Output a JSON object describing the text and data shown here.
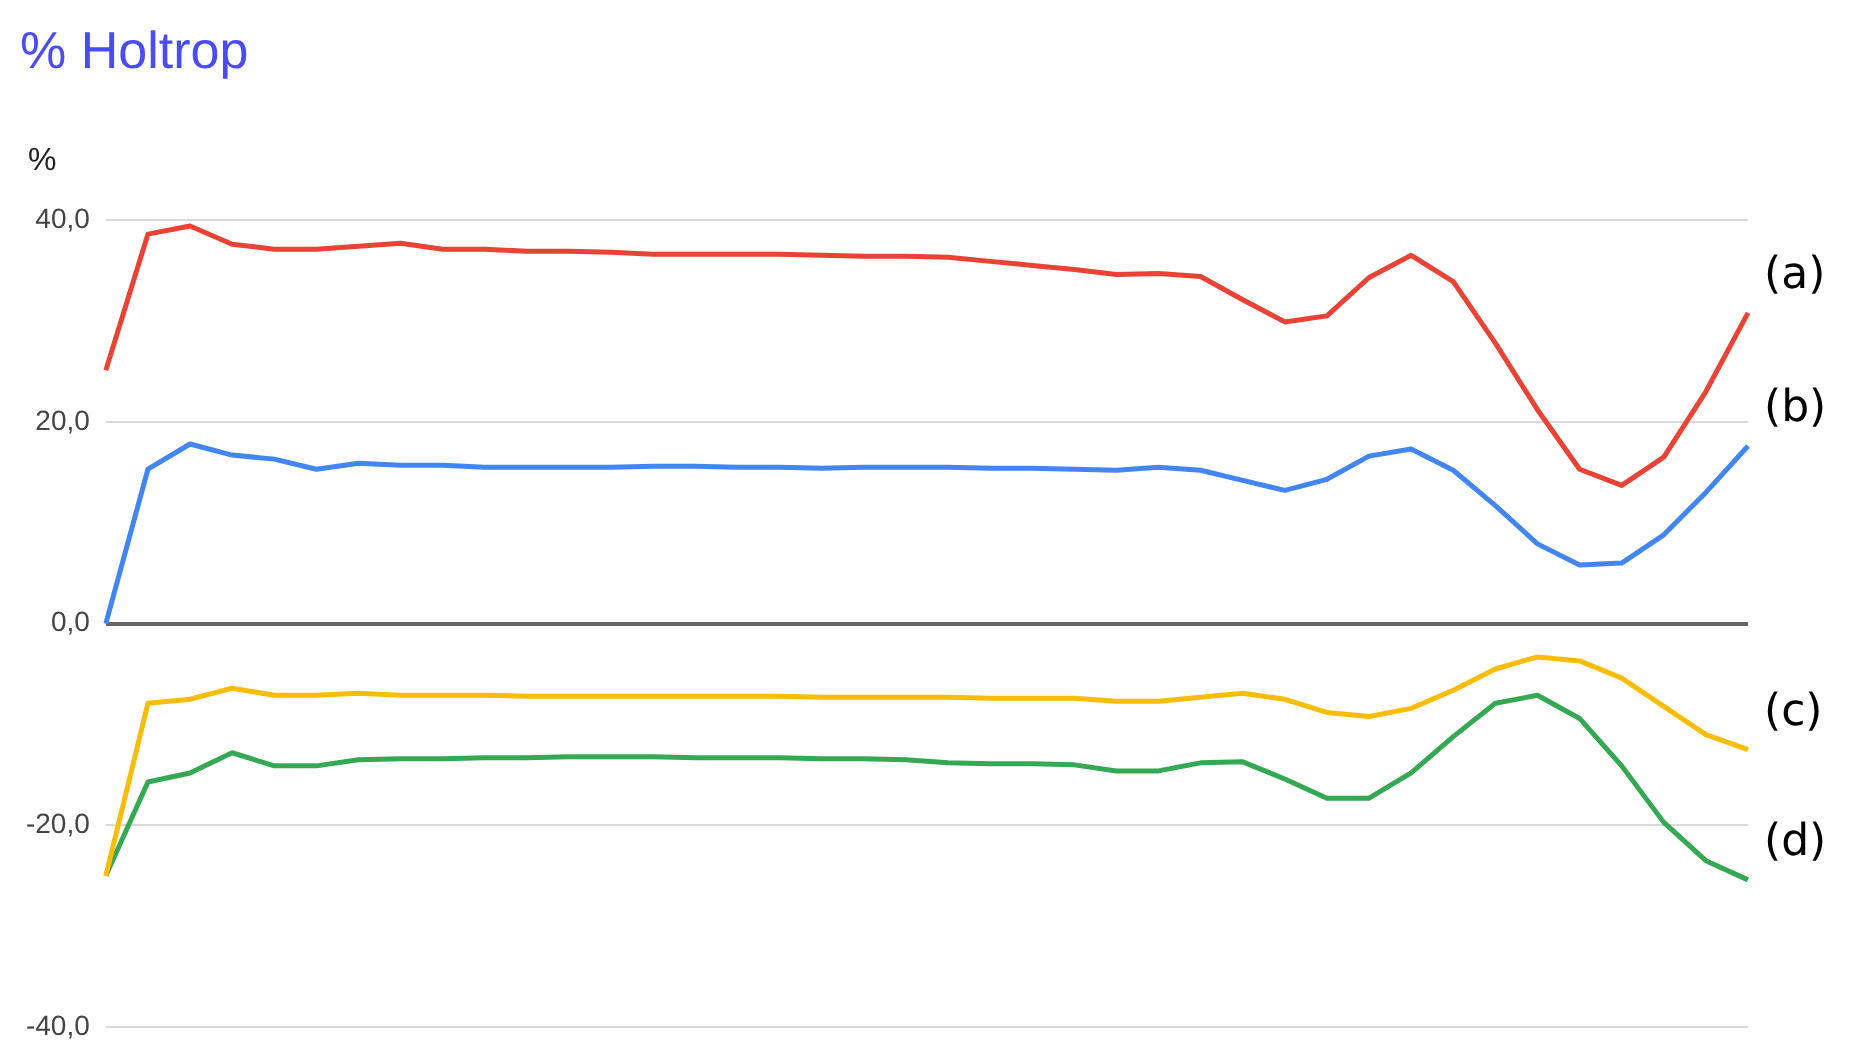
{
  "chart_data": {
    "type": "line",
    "title": "% Holtrop",
    "ylabel": "%",
    "categories": [
      null,
      null,
      null,
      null,
      null,
      null,
      null,
      null,
      null,
      null,
      null,
      null,
      null,
      null,
      null,
      null,
      null,
      null,
      null,
      null,
      null,
      null,
      null,
      null,
      null,
      null,
      null,
      null,
      null,
      null,
      null,
      null,
      null,
      null,
      null,
      null,
      null,
      null,
      null,
      null
    ],
    "series": [
      {
        "name": "(a)",
        "color": "#ea4335",
        "values": [
          25.1,
          38.6,
          39.4,
          37.6,
          37.1,
          37.1,
          37.4,
          37.7,
          37.1,
          37.1,
          36.9,
          36.9,
          36.8,
          36.6,
          36.6,
          36.6,
          36.6,
          36.5,
          36.4,
          36.4,
          36.3,
          35.9,
          35.5,
          35.1,
          34.6,
          34.7,
          34.4,
          32.1,
          29.9,
          30.5,
          34.3,
          36.5,
          33.9,
          27.8,
          21.2,
          15.3,
          13.7,
          16.5,
          23,
          30.8
        ]
      },
      {
        "name": "(b)",
        "color": "#4285f4",
        "values": [
          0,
          15.3,
          17.8,
          16.7,
          16.3,
          15.3,
          15.9,
          15.7,
          15.7,
          15.5,
          15.5,
          15.5,
          15.5,
          15.6,
          15.6,
          15.5,
          15.5,
          15.4,
          15.5,
          15.5,
          15.5,
          15.4,
          15.4,
          15.3,
          15.2,
          15.5,
          15.2,
          14.2,
          13.2,
          14.3,
          16.6,
          17.3,
          15.2,
          11.7,
          7.9,
          5.8,
          6.0,
          8.8,
          13,
          17.6
        ]
      },
      {
        "name": "(c)",
        "color": "#fbbc04",
        "values": [
          -25,
          -7.9,
          -7.5,
          -6.4,
          -7.1,
          -7.1,
          -6.9,
          -7.1,
          -7.1,
          -7.1,
          -7.2,
          -7.2,
          -7.2,
          -7.2,
          -7.2,
          -7.2,
          -7.2,
          -7.3,
          -7.3,
          -7.3,
          -7.3,
          -7.4,
          -7.4,
          -7.4,
          -7.7,
          -7.7,
          -7.3,
          -6.9,
          -7.5,
          -8.8,
          -9.2,
          -8.4,
          -6.6,
          -4.5,
          -3.3,
          -3.7,
          -5.4,
          -8.2,
          -11,
          -12.5
        ]
      },
      {
        "name": "(d)",
        "color": "#34a853",
        "values": [
          -25,
          -15.7,
          -14.8,
          -12.8,
          -14.1,
          -14.1,
          -13.5,
          -13.4,
          -13.4,
          -13.3,
          -13.3,
          -13.2,
          -13.2,
          -13.2,
          -13.3,
          -13.3,
          -13.3,
          -13.4,
          -13.4,
          -13.5,
          -13.8,
          -13.9,
          -13.9,
          -14,
          -14.6,
          -14.6,
          -13.8,
          -13.7,
          -15.4,
          -17.3,
          -17.3,
          -14.8,
          -11.2,
          -7.9,
          -7.1,
          -9.4,
          -14.1,
          -19.7,
          -23.5,
          -25.4
        ]
      }
    ],
    "ylim": [
      -40,
      40
    ],
    "yticks": [
      {
        "value": -40,
        "label": "-40,0"
      },
      {
        "value": -20,
        "label": "-20,0"
      },
      {
        "value": 0,
        "label": "0,0"
      },
      {
        "value": 20,
        "label": "20,0"
      },
      {
        "value": 40,
        "label": "40,0"
      }
    ],
    "grid": "y",
    "legend": false,
    "tick_labels": "y",
    "marker": "none",
    "line_style": "solid"
  }
}
